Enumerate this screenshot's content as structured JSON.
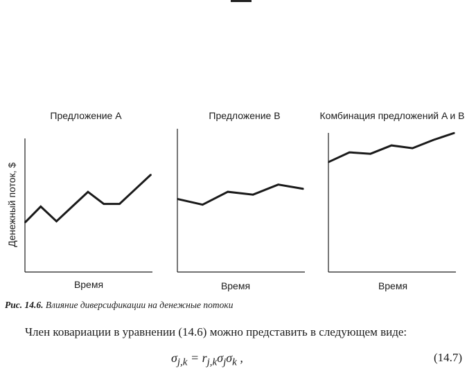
{
  "figure": {
    "ylabel": "Денежный поток, $",
    "caption_label": "Рис. 14.6.",
    "caption_text": "Влияние диверсификации на денежные потоки"
  },
  "chart_data": [
    {
      "type": "line",
      "title": "Предложение A",
      "xlabel": "Время",
      "ylabel": "Денежный поток, $",
      "x": [
        0,
        1,
        2,
        3,
        4,
        5,
        6,
        7,
        8
      ],
      "ylim": [
        0,
        100
      ],
      "series": [
        {
          "values": [
            37,
            49,
            38,
            49,
            60,
            51,
            51,
            62,
            73
          ]
        }
      ]
    },
    {
      "type": "line",
      "title": "Предложение B",
      "xlabel": "Время",
      "ylabel": "",
      "x": [
        0,
        1,
        2,
        3,
        4,
        5
      ],
      "ylim": [
        0,
        100
      ],
      "series": [
        {
          "values": [
            51,
            47,
            56,
            54,
            61,
            58
          ]
        }
      ]
    },
    {
      "type": "line",
      "title": "Комбинация предложений A и B",
      "xlabel": "Время",
      "ylabel": "",
      "x": [
        0,
        1,
        2,
        3,
        4,
        5,
        6
      ],
      "ylim": [
        0,
        100
      ],
      "series": [
        {
          "values": [
            79,
            86,
            85,
            91,
            89,
            95,
            100
          ]
        }
      ]
    }
  ],
  "text": {
    "paragraph": "Член ковариации в уравнении (14.6) можно представить в следующем виде:",
    "formula": "σj,k = rj,kσjσk ,",
    "equation_number": "(14.7)"
  }
}
